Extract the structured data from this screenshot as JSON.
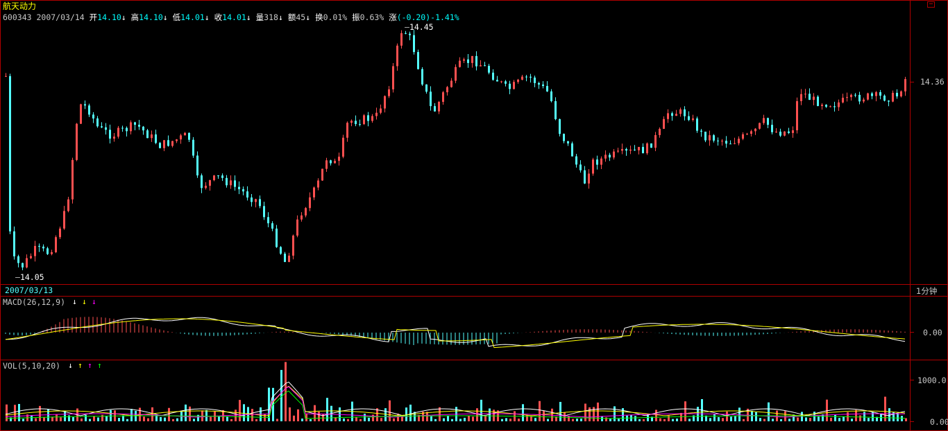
{
  "header": {
    "stock_name": "航天动力",
    "code": "600343",
    "date": "2007/03/14",
    "open_label": "开",
    "open_value": "14.10",
    "high_label": "高",
    "high_value": "14.10",
    "low_label": "低",
    "low_value": "14.01",
    "close_label": "收",
    "close_value": "14.01",
    "volume_label": "量",
    "volume_value": "318",
    "amount_label": "额",
    "amount_value": "45",
    "turnover_label": "换",
    "turnover_value": "0.01%",
    "amplitude_label": "振",
    "amplitude_value": "0.63%",
    "change_label": "涨",
    "change_value": "(-0.20)-1.41%",
    "arrow_glyph": "↓"
  },
  "price_panel": {
    "high_marker": "14.45",
    "low_marker": "14.05",
    "axis_label": "14.36",
    "date_label": "2007/03/13",
    "period_label": "1分钟"
  },
  "macd_panel": {
    "title": "MACD(26,12,9)",
    "axis_zero": "0.00",
    "arrows": [
      "↓",
      "↓",
      "↓"
    ]
  },
  "vol_panel": {
    "title": "VOL(5,10,20)",
    "axis_top": "1000.0",
    "axis_bottom": "0.00",
    "arrows": [
      "↓",
      "↑",
      "↑",
      "↑"
    ]
  },
  "colors": {
    "up": "#ff5050",
    "down": "#54ffff",
    "frame": "#b00000",
    "ma5": "#ffffff",
    "ma10": "#ffff00",
    "ma20": "#ff00ff",
    "ma30": "#00ff00"
  }
}
